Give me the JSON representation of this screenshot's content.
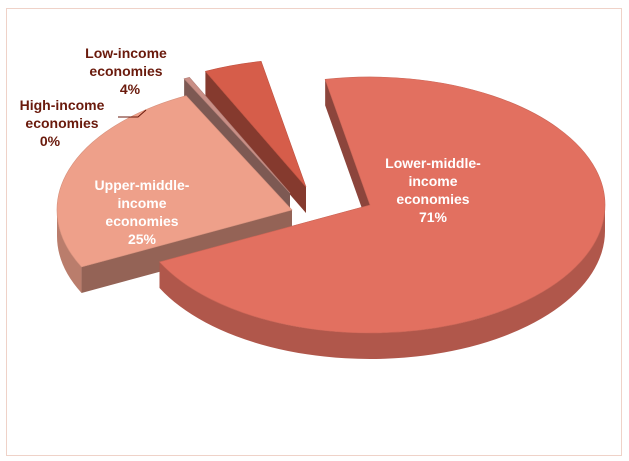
{
  "chart_data": {
    "type": "pie",
    "style": "3d-exploded",
    "title": "",
    "slices": [
      {
        "label_lines": [
          "Lower-middle-",
          "income",
          "economies"
        ],
        "value_label": "71%",
        "value": 71,
        "color": "#e27060"
      },
      {
        "label_lines": [
          "Upper-middle-",
          "income",
          "economies"
        ],
        "value_label": "25%",
        "value": 25,
        "color": "#eea08a"
      },
      {
        "label_lines": [
          "High-income",
          "economies"
        ],
        "value_label": "0%",
        "value": 0.4,
        "color": "#c98f86"
      },
      {
        "label_lines": [
          "Low-income",
          "economies"
        ],
        "value_label": "4%",
        "value": 4,
        "color": "#d65d4a"
      }
    ],
    "label_colors": {
      "inside": "#ffffff",
      "outside": "#6a1a0c"
    }
  }
}
